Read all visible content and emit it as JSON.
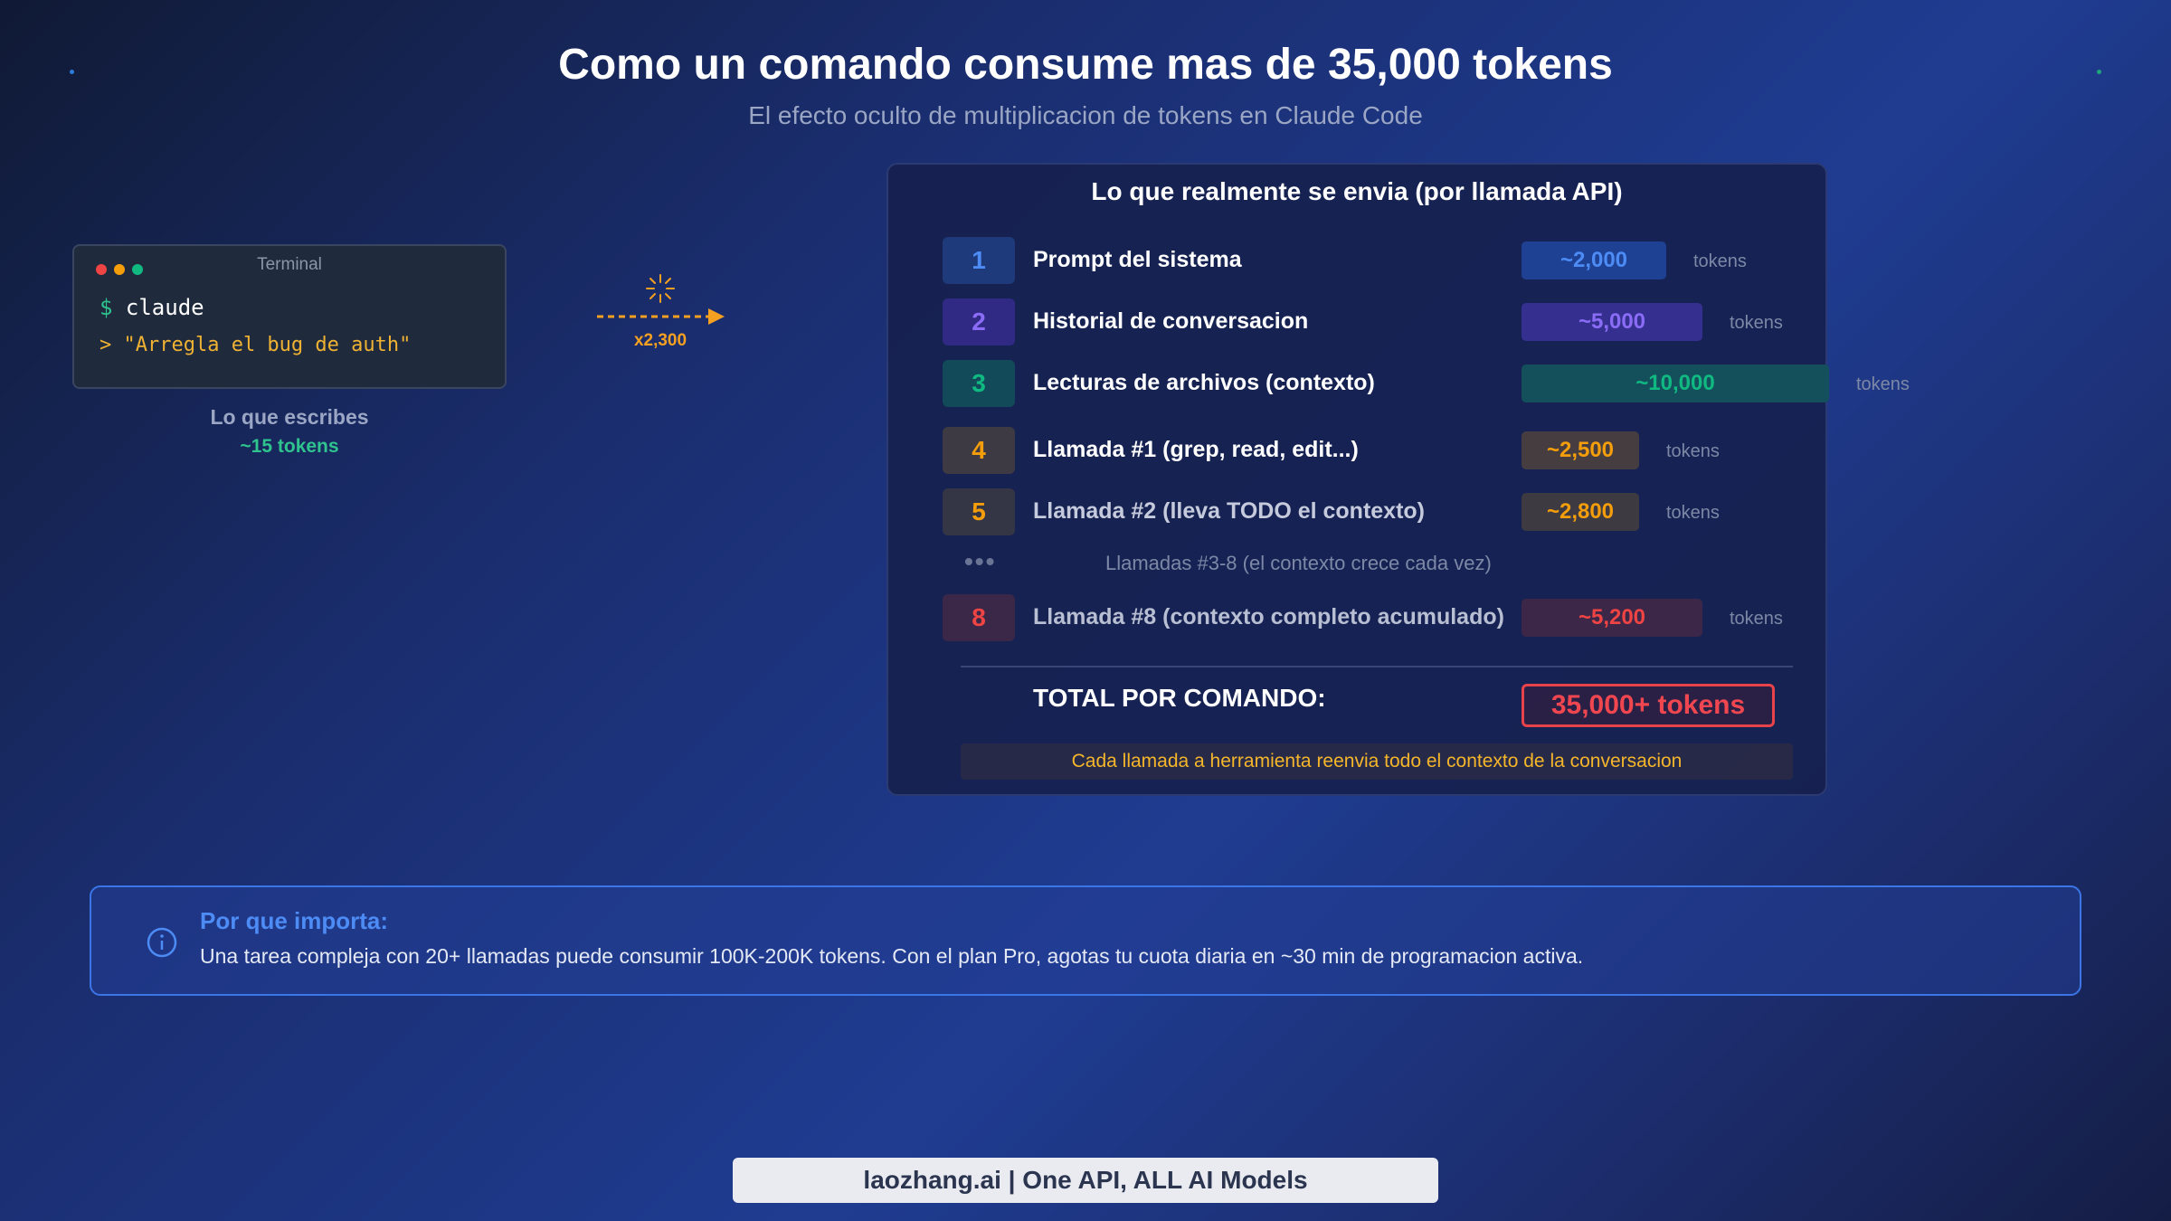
{
  "header": {
    "title": "Como un comando consume mas de 35,000 tokens",
    "subtitle": "El efecto oculto de multiplicacion de tokens en Claude Code"
  },
  "terminal": {
    "window_title": "Terminal",
    "prompt_symbol": "$",
    "command": "claude",
    "input_line": "> \"Arregla el bug de auth\"",
    "caption": "Lo que escribes",
    "tokens": "~15 tokens",
    "icon": "window-traffic-lights"
  },
  "arrow": {
    "multiplier": "x2,300",
    "icon": "sparkle-icon",
    "color": "#f5a020"
  },
  "panel": {
    "title": "Lo que realmente se envia (por llamada API)",
    "rows": [
      {
        "num": "1",
        "label": "Prompt del sistema",
        "tokens": "~2,000",
        "unit": "tokens",
        "color": "#3b82f6",
        "tokens_value": 2000
      },
      {
        "num": "2",
        "label": "Historial de conversacion",
        "tokens": "~5,000",
        "unit": "tokens",
        "color": "#8b5cf6",
        "tokens_value": 5000
      },
      {
        "num": "3",
        "label": "Lecturas de archivos (contexto)",
        "tokens": "~10,000",
        "unit": "tokens",
        "color": "#10b981",
        "tokens_value": 10000
      },
      {
        "num": "4",
        "label": "Llamada #1 (grep, read, edit...)",
        "tokens": "~2,500",
        "unit": "tokens",
        "color": "#f59e0b",
        "tokens_value": 2500
      },
      {
        "num": "5",
        "label": "Llamada #2 (lleva TODO el contexto)",
        "tokens": "~2,800",
        "unit": "tokens",
        "color": "#f59e0b",
        "tokens_value": 2800
      },
      {
        "num": "8",
        "label": "Llamada #8 (contexto completo acumulado)",
        "tokens": "~5,200",
        "unit": "tokens",
        "color": "#ef4444",
        "tokens_value": 5200
      }
    ],
    "ellipsis": "•••",
    "ellipsis_text": "Llamadas #3-8 (el contexto crece cada vez)",
    "total_label": "TOTAL POR COMANDO:",
    "total_value": "35,000+ tokens",
    "note": "Cada llamada a herramienta reenvia todo el contexto de la conversacion"
  },
  "info": {
    "icon": "info-icon",
    "title": "Por que importa:",
    "text": "Una tarea compleja con 20+ llamadas puede consumir 100K-200K tokens. Con el plan Pro, agotas tu cuota diaria en ~30 min de programacion activa."
  },
  "footer": {
    "text": "laozhang.ai | One API, ALL AI Models"
  }
}
